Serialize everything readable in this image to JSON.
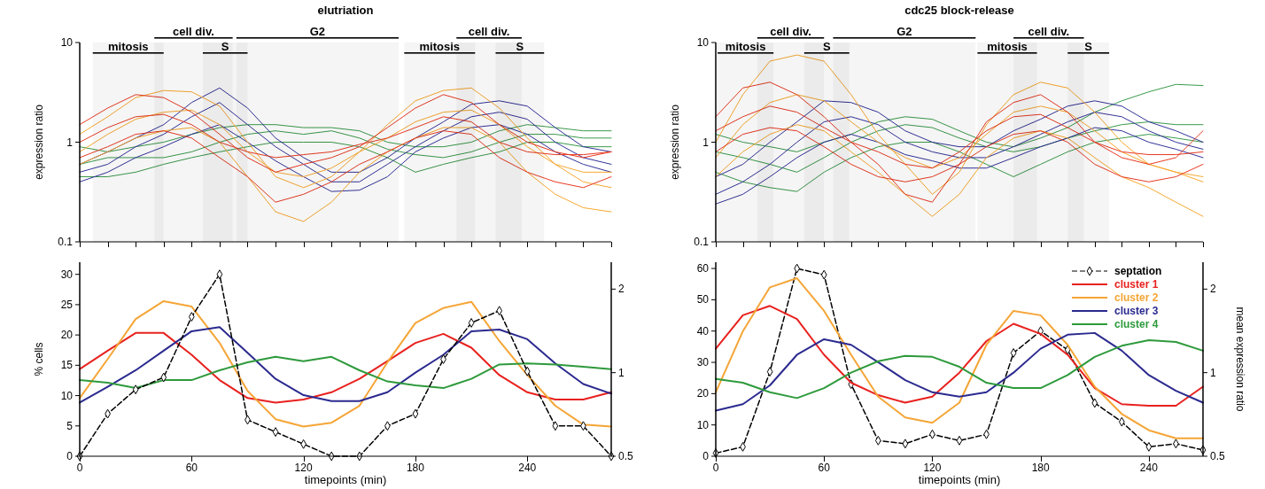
{
  "chart_data": [
    {
      "type": "line",
      "title": "elutriation",
      "ylabel": "expression ratio",
      "log": "y",
      "ylim": [
        0.1,
        10
      ],
      "yticks": [
        0.1,
        1,
        10
      ],
      "xlim": [
        0,
        285
      ],
      "xticks": [
        0,
        15,
        30,
        45,
        60,
        75,
        90,
        105,
        120,
        135,
        150,
        165,
        180,
        195,
        210,
        225,
        240,
        255,
        270,
        285
      ],
      "tick_labels": "y",
      "x": [
        0,
        15,
        30,
        45,
        60,
        75,
        90,
        105,
        120,
        135,
        150,
        165,
        180,
        195,
        210,
        225,
        240,
        255,
        270,
        285
      ],
      "bands": [
        {
          "axis": "x",
          "from": 7,
          "to": 45,
          "label": "mitosis"
        },
        {
          "axis": "x",
          "from": 40,
          "to": 82,
          "label": "cell div."
        },
        {
          "axis": "x",
          "from": 66,
          "to": 90,
          "label": "S"
        },
        {
          "axis": "x",
          "from": 84,
          "to": 171,
          "label": "G2"
        },
        {
          "axis": "x",
          "from": 174,
          "to": 212,
          "label": "mitosis"
        },
        {
          "axis": "x",
          "from": 202,
          "to": 237,
          "label": "cell div."
        },
        {
          "axis": "x",
          "from": 223,
          "to": 249,
          "label": "S"
        }
      ],
      "series": [
        {
          "color": "#3a9a4a",
          "values": [
            0.9,
            0.8,
            0.9,
            1.0,
            1.2,
            1.4,
            1.5,
            1.5,
            1.4,
            1.4,
            1.3,
            1.0,
            0.9,
            0.9,
            1.0,
            1.3,
            1.5,
            1.4,
            1.3,
            1.3
          ]
        },
        {
          "color": "#3a9a4a",
          "values": [
            0.6,
            0.7,
            0.7,
            0.7,
            0.8,
            1.0,
            1.2,
            1.3,
            1.2,
            1.3,
            1.1,
            0.85,
            0.75,
            0.7,
            0.8,
            1.0,
            1.2,
            1.2,
            1.1,
            1.1
          ]
        },
        {
          "color": "#3a9a4a",
          "values": [
            0.45,
            0.45,
            0.5,
            0.6,
            0.7,
            0.8,
            0.9,
            1.0,
            1.0,
            1.0,
            0.9,
            0.7,
            0.5,
            0.6,
            0.7,
            0.8,
            1.0,
            1.0,
            0.9,
            0.9
          ]
        },
        {
          "color": "#33339a",
          "values": [
            0.6,
            0.8,
            1.1,
            1.5,
            2.5,
            3.5,
            2.2,
            1.1,
            0.7,
            0.5,
            0.5,
            0.7,
            1.1,
            1.6,
            2.4,
            2.6,
            2.3,
            1.4,
            0.9,
            0.8
          ]
        },
        {
          "color": "#33339a",
          "values": [
            0.5,
            0.6,
            0.9,
            1.2,
            1.8,
            2.5,
            1.5,
            0.9,
            0.6,
            0.4,
            0.4,
            0.6,
            0.9,
            1.3,
            1.8,
            2.0,
            1.7,
            1.0,
            0.7,
            0.6
          ]
        },
        {
          "color": "#33339a",
          "values": [
            0.4,
            0.5,
            0.7,
            0.9,
            1.2,
            1.5,
            1.0,
            0.65,
            0.45,
            0.32,
            0.33,
            0.45,
            0.8,
            1.1,
            1.4,
            1.5,
            1.2,
            0.8,
            0.6,
            0.5
          ]
        },
        {
          "color": "#f7a830",
          "values": [
            1.2,
            1.8,
            2.8,
            3.3,
            3.2,
            2.3,
            1.0,
            0.45,
            0.35,
            0.45,
            0.8,
            1.5,
            2.6,
            3.3,
            3.5,
            2.2,
            1.1,
            0.6,
            0.4,
            0.35
          ]
        },
        {
          "color": "#f7a830",
          "values": [
            0.8,
            1.2,
            1.7,
            2.0,
            2.1,
            1.5,
            0.8,
            0.5,
            0.45,
            0.55,
            0.8,
            1.1,
            1.6,
            2.0,
            2.1,
            1.5,
            0.9,
            0.6,
            0.5,
            0.5
          ]
        },
        {
          "color": "#f7a830",
          "values": [
            0.6,
            0.8,
            1.1,
            1.3,
            1.4,
            1.0,
            0.45,
            0.2,
            0.16,
            0.25,
            0.5,
            0.8,
            1.1,
            1.4,
            1.4,
            1.0,
            0.5,
            0.3,
            0.22,
            0.2
          ]
        },
        {
          "color": "#e83a22",
          "values": [
            1.5,
            2.2,
            3.0,
            2.8,
            2.0,
            1.2,
            0.7,
            0.5,
            0.6,
            0.7,
            0.9,
            1.4,
            2.2,
            3.0,
            2.5,
            1.5,
            1.0,
            0.8,
            0.7,
            0.8
          ]
        },
        {
          "color": "#e83a22",
          "values": [
            1.0,
            1.4,
            1.8,
            1.9,
            1.5,
            1.0,
            0.8,
            0.7,
            0.75,
            0.8,
            0.95,
            1.1,
            1.4,
            1.8,
            1.6,
            1.0,
            0.8,
            0.75,
            0.75,
            0.8
          ]
        },
        {
          "color": "#e83a22",
          "values": [
            0.7,
            0.9,
            1.2,
            1.3,
            1.1,
            0.7,
            0.45,
            0.25,
            0.3,
            0.4,
            0.6,
            0.8,
            1.1,
            1.3,
            1.2,
            0.7,
            0.5,
            0.4,
            0.35,
            0.45
          ]
        }
      ]
    },
    {
      "type": "line",
      "title": "cdc25 block-release",
      "ylabel": "expression ratio",
      "log": "y",
      "ylim": [
        0.1,
        10
      ],
      "yticks": [
        0.1,
        1,
        10
      ],
      "xlim": [
        0,
        270
      ],
      "xticks": [
        0,
        15,
        30,
        45,
        60,
        75,
        90,
        105,
        120,
        135,
        150,
        165,
        180,
        195,
        210,
        225,
        240,
        255,
        270
      ],
      "tick_labels": "y",
      "x": [
        0,
        15,
        30,
        45,
        60,
        75,
        90,
        105,
        120,
        135,
        150,
        165,
        180,
        195,
        210,
        225,
        240,
        255,
        270
      ],
      "bands": [
        {
          "axis": "x",
          "from": 1,
          "to": 32,
          "label": "mitosis"
        },
        {
          "axis": "x",
          "from": 23,
          "to": 60,
          "label": "cell div."
        },
        {
          "axis": "x",
          "from": 49,
          "to": 74,
          "label": "S"
        },
        {
          "axis": "x",
          "from": 65,
          "to": 144,
          "label": "G2"
        },
        {
          "axis": "x",
          "from": 145,
          "to": 178,
          "label": "mitosis"
        },
        {
          "axis": "x",
          "from": 165,
          "to": 204,
          "label": "cell div."
        },
        {
          "axis": "x",
          "from": 195,
          "to": 218,
          "label": "S"
        }
      ],
      "series": [
        {
          "color": "#3a9a4a",
          "values": [
            1.2,
            1.0,
            0.9,
            0.8,
            1.0,
            1.2,
            1.6,
            1.8,
            1.7,
            1.3,
            1.0,
            0.9,
            1.1,
            1.4,
            2.0,
            2.6,
            3.2,
            3.8,
            3.7
          ]
        },
        {
          "color": "#3a9a4a",
          "values": [
            0.8,
            0.7,
            0.6,
            0.5,
            0.7,
            1.0,
            1.3,
            1.5,
            1.4,
            1.1,
            0.9,
            0.8,
            0.9,
            1.1,
            1.3,
            1.5,
            1.6,
            1.5,
            1.5
          ]
        },
        {
          "color": "#3a9a4a",
          "values": [
            0.5,
            0.4,
            0.35,
            0.32,
            0.5,
            0.7,
            0.9,
            1.0,
            1.0,
            0.8,
            0.6,
            0.45,
            0.6,
            0.8,
            1.0,
            1.1,
            1.2,
            1.1,
            1.0
          ]
        },
        {
          "color": "#33339a",
          "values": [
            0.45,
            0.6,
            1.0,
            1.6,
            2.6,
            2.5,
            2.0,
            1.3,
            1.0,
            0.9,
            0.9,
            1.3,
            1.7,
            2.3,
            2.6,
            2.3,
            1.6,
            1.3,
            1.0
          ]
        },
        {
          "color": "#33339a",
          "values": [
            0.3,
            0.4,
            0.6,
            1.0,
            1.6,
            1.8,
            1.5,
            1.0,
            0.8,
            0.7,
            0.7,
            0.9,
            1.2,
            1.6,
            2.0,
            1.8,
            1.3,
            1.0,
            0.85
          ]
        },
        {
          "color": "#33339a",
          "values": [
            0.24,
            0.3,
            0.45,
            0.7,
            1.0,
            1.2,
            1.0,
            0.75,
            0.65,
            0.55,
            0.55,
            0.7,
            0.9,
            1.1,
            1.4,
            1.3,
            1.0,
            0.85,
            0.7
          ]
        },
        {
          "color": "#f7a830",
          "values": [
            1.0,
            3.0,
            6.5,
            7.5,
            6.5,
            3.0,
            1.2,
            0.6,
            0.3,
            0.5,
            1.5,
            3.0,
            4.0,
            3.5,
            2.0,
            1.0,
            0.6,
            0.5,
            0.4
          ]
        },
        {
          "color": "#f7a830",
          "values": [
            0.7,
            1.5,
            2.5,
            3.0,
            2.6,
            1.6,
            1.0,
            0.7,
            0.55,
            0.7,
            1.2,
            2.0,
            2.3,
            2.0,
            1.3,
            0.8,
            0.6,
            0.5,
            0.45
          ]
        },
        {
          "color": "#f7a830",
          "values": [
            0.45,
            0.8,
            1.2,
            1.5,
            1.3,
            0.8,
            0.5,
            0.3,
            0.18,
            0.3,
            0.7,
            1.1,
            1.3,
            1.1,
            0.7,
            0.45,
            0.35,
            0.25,
            0.18
          ]
        },
        {
          "color": "#e83a22",
          "values": [
            1.8,
            3.5,
            4.0,
            3.0,
            1.8,
            1.0,
            0.6,
            0.3,
            0.25,
            0.6,
            1.6,
            2.5,
            3.0,
            2.0,
            1.0,
            0.7,
            0.6,
            0.7,
            1.3
          ]
        },
        {
          "color": "#e83a22",
          "values": [
            1.3,
            1.8,
            2.3,
            2.0,
            1.4,
            1.0,
            0.8,
            0.6,
            0.55,
            0.8,
            1.3,
            1.8,
            1.9,
            1.4,
            1.0,
            0.8,
            0.75,
            0.75,
            0.8
          ]
        },
        {
          "color": "#e83a22",
          "values": [
            0.8,
            1.2,
            1.4,
            1.3,
            0.9,
            0.6,
            0.45,
            0.4,
            0.45,
            0.6,
            0.9,
            1.2,
            1.3,
            1.0,
            0.6,
            0.45,
            0.4,
            0.45,
            0.6
          ]
        }
      ]
    },
    {
      "type": "line",
      "xlabel": "timepoints (min)",
      "ylabel": "% cells",
      "log": "y2",
      "xlim": [
        0,
        285
      ],
      "xticks": [
        0,
        60,
        120,
        180,
        240
      ],
      "ylim": [
        0,
        32
      ],
      "yticks": [
        0,
        5,
        10,
        15,
        20,
        25,
        30
      ],
      "y2lim": [
        0.5,
        2.5
      ],
      "y2ticks": [
        0.5,
        1,
        2
      ],
      "x": [
        0,
        15,
        30,
        45,
        60,
        75,
        90,
        105,
        120,
        135,
        150,
        165,
        180,
        195,
        210,
        225,
        240,
        255,
        270,
        285
      ],
      "series": [
        {
          "color": "#e8211e",
          "axis": "y2",
          "values": [
            1.03,
            1.2,
            1.39,
            1.39,
            1.16,
            0.94,
            0.81,
            0.78,
            0.8,
            0.85,
            0.95,
            1.1,
            1.28,
            1.38,
            1.23,
            0.98,
            0.85,
            0.8,
            0.8,
            0.85
          ]
        },
        {
          "color": "#f5a536",
          "axis": "y2",
          "values": [
            0.81,
            1.12,
            1.56,
            1.81,
            1.73,
            1.28,
            0.86,
            0.68,
            0.64,
            0.66,
            0.76,
            1.09,
            1.51,
            1.71,
            1.8,
            1.3,
            0.98,
            0.76,
            0.65,
            0.64
          ]
        },
        {
          "color": "#2b2a8f",
          "axis": "y2",
          "values": [
            0.78,
            0.89,
            1.02,
            1.2,
            1.41,
            1.46,
            1.18,
            0.95,
            0.83,
            0.79,
            0.79,
            0.85,
            1.0,
            1.16,
            1.41,
            1.43,
            1.32,
            1.08,
            0.91,
            0.84
          ]
        },
        {
          "color": "#2e9a3c",
          "axis": "y2",
          "values": [
            0.94,
            0.92,
            0.88,
            0.94,
            0.94,
            1.02,
            1.09,
            1.14,
            1.1,
            1.14,
            1.02,
            0.93,
            0.9,
            0.88,
            0.95,
            1.07,
            1.08,
            1.07,
            1.05,
            1.03
          ]
        },
        {
          "color": "#000000",
          "marker": "diamond",
          "line_style": "dashed",
          "values": [
            0,
            7,
            11,
            13,
            23,
            30,
            6,
            4,
            2,
            0,
            0,
            5,
            7,
            16,
            22,
            24,
            14,
            5,
            5,
            0
          ]
        }
      ]
    },
    {
      "type": "line",
      "xlabel": "timepoints (min)",
      "y2label": "mean expression ratio",
      "log": "y2",
      "xlim": [
        0,
        270
      ],
      "xticks": [
        0,
        60,
        120,
        180,
        240
      ],
      "ylim": [
        0,
        62
      ],
      "yticks": [
        0,
        10,
        20,
        30,
        40,
        50,
        60
      ],
      "y2lim": [
        0.5,
        2.5
      ],
      "y2ticks": [
        0.5,
        1,
        2
      ],
      "legend": "top right",
      "x": [
        0,
        15,
        30,
        45,
        60,
        75,
        90,
        105,
        120,
        135,
        150,
        165,
        180,
        195,
        210,
        225,
        240,
        255,
        270
      ],
      "series": [
        {
          "name": "septation",
          "color": "#000000",
          "marker": "diamond",
          "line_style": "dashed",
          "values": [
            1,
            3,
            27,
            60,
            58,
            23,
            5,
            4,
            7,
            5,
            7,
            33,
            40,
            34,
            17,
            11,
            3,
            4,
            2
          ]
        },
        {
          "name": "cluster 1",
          "color": "#e8211e",
          "axis": "y2",
          "values": [
            1.22,
            1.61,
            1.74,
            1.56,
            1.16,
            0.92,
            0.83,
            0.78,
            0.82,
            1.0,
            1.3,
            1.5,
            1.38,
            1.16,
            0.88,
            0.77,
            0.76,
            0.76,
            0.89
          ]
        },
        {
          "name": "cluster 2",
          "color": "#f5a536",
          "axis": "y2",
          "values": [
            0.85,
            1.41,
            2.03,
            2.19,
            1.67,
            1.16,
            0.82,
            0.69,
            0.66,
            0.78,
            1.26,
            1.67,
            1.61,
            1.26,
            0.89,
            0.71,
            0.62,
            0.58,
            0.58
          ]
        },
        {
          "name": "cluster 3",
          "color": "#2b2a8f",
          "axis": "y2",
          "values": [
            0.73,
            0.77,
            0.9,
            1.16,
            1.32,
            1.26,
            1.09,
            0.94,
            0.85,
            0.82,
            0.85,
            1.0,
            1.22,
            1.37,
            1.39,
            1.2,
            0.98,
            0.86,
            0.78
          ]
        },
        {
          "name": "cluster 4",
          "color": "#2e9a3c",
          "axis": "y2",
          "values": [
            0.95,
            0.92,
            0.85,
            0.81,
            0.88,
            1.0,
            1.1,
            1.15,
            1.14,
            1.05,
            0.92,
            0.88,
            0.88,
            0.98,
            1.14,
            1.25,
            1.31,
            1.29,
            1.2
          ]
        }
      ]
    }
  ]
}
